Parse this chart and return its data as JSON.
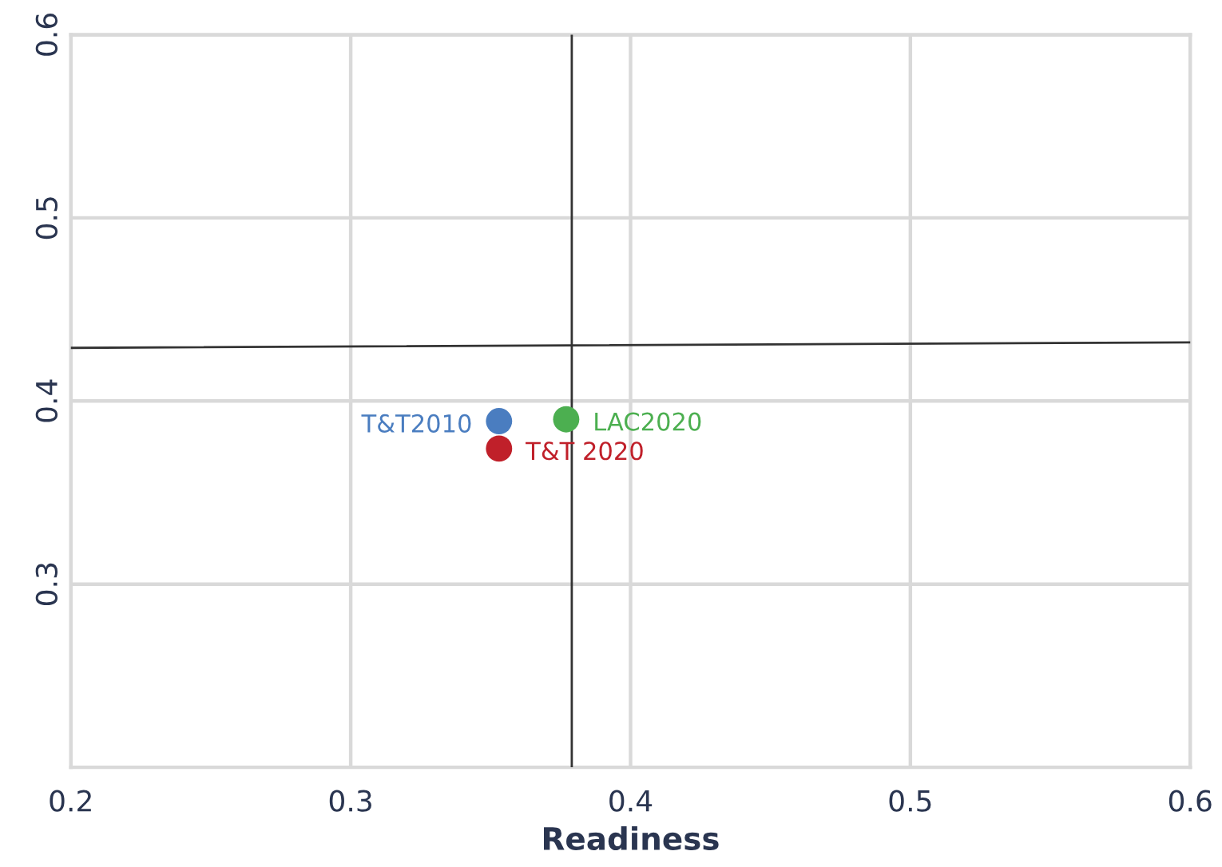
{
  "chart_data": {
    "type": "scatter",
    "xlabel": "Readiness",
    "xlim": [
      0.2,
      0.6
    ],
    "xticks": [
      0.2,
      0.3,
      0.4,
      0.5,
      0.6
    ],
    "ylim": [
      0.2,
      0.6
    ],
    "yticks": [
      0.3,
      0.4,
      0.5,
      0.6
    ],
    "grid": true,
    "legend": false,
    "marker": "circle",
    "series": [
      {
        "name": "T&T2010",
        "color": "#4a7dc0",
        "x": [
          0.353
        ],
        "values": [
          0.389
        ]
      },
      {
        "name": "T&T 2020",
        "color": "#c0202a",
        "x": [
          0.353
        ],
        "values": [
          0.374
        ]
      },
      {
        "name": "LAC2020",
        "color": "#4caf50",
        "x": [
          0.377
        ],
        "values": [
          0.39
        ]
      },
      {
        "type": "line",
        "color": "#333333",
        "x": [
          0.2,
          0.6
        ],
        "values": [
          0.429,
          0.432
        ],
        "marker": "none",
        "line_style": "solid"
      }
    ],
    "ref_lines": [
      {
        "axis": "x",
        "value": 0.379,
        "color": "#333333",
        "line_style": "solid"
      }
    ]
  }
}
